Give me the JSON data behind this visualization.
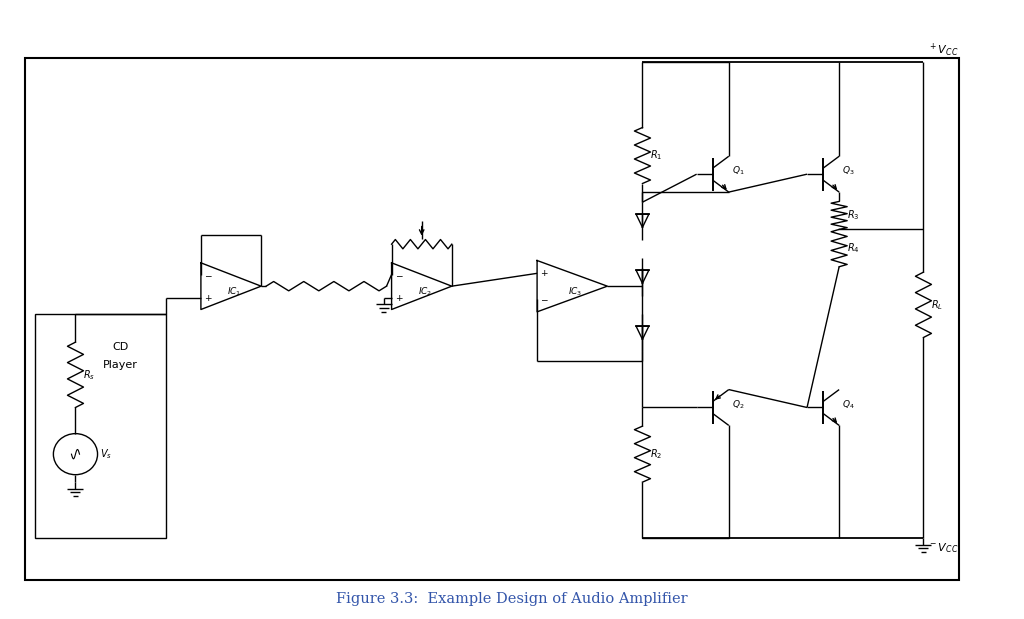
{
  "title": "Figure 3.3:  Example Design of Audio Amplifier",
  "title_color": "#3355aa",
  "bg_color": "#ffffff",
  "line_color": "#000000",
  "fig_width": 10.24,
  "fig_height": 6.19
}
